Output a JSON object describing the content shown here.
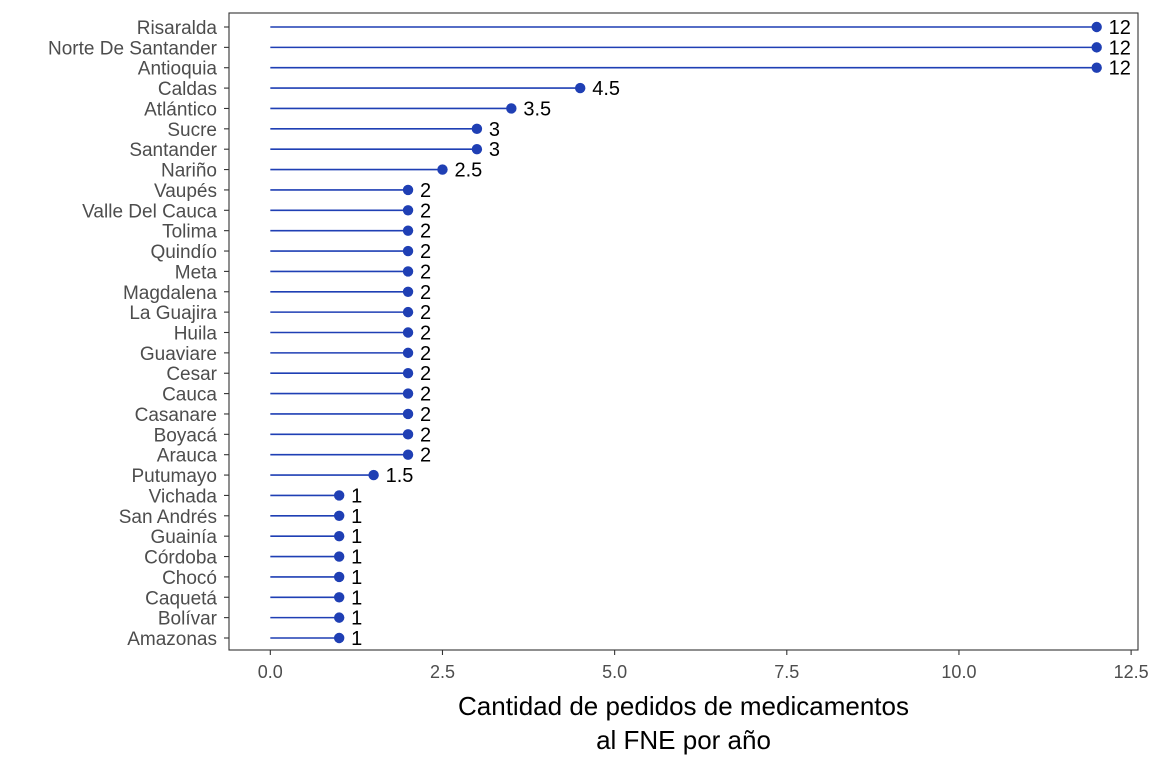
{
  "chart_data": {
    "type": "lollipop",
    "orientation": "horizontal",
    "title": "",
    "xlabel_lines": [
      "Cantidad de pedidos de medicamentos",
      "al FNE por año"
    ],
    "ylabel": "",
    "xlim": [
      -0.6,
      12.6
    ],
    "xticks": [
      0,
      2.5,
      5,
      7.5,
      10,
      12.5
    ],
    "xtick_labels": [
      "0.0",
      "2.5",
      "5.0",
      "7.5",
      "10.0",
      "12.5"
    ],
    "grid": false,
    "legend": "none",
    "color": "#1f3fb4",
    "categories": [
      "Risaralda",
      "Norte De Santander",
      "Antioquia",
      "Caldas",
      "Atlántico",
      "Sucre",
      "Santander",
      "Nariño",
      "Vaupés",
      "Valle Del Cauca",
      "Tolima",
      "Quindío",
      "Meta",
      "Magdalena",
      "La Guajira",
      "Huila",
      "Guaviare",
      "Cesar",
      "Cauca",
      "Casanare",
      "Boyacá",
      "Arauca",
      "Putumayo",
      "Vichada",
      "San Andrés",
      "Guainía",
      "Córdoba",
      "Chocó",
      "Caquetá",
      "Bolívar",
      "Amazonas"
    ],
    "values": [
      12,
      12,
      12,
      4.5,
      3.5,
      3,
      3,
      2.5,
      2,
      2,
      2,
      2,
      2,
      2,
      2,
      2,
      2,
      2,
      2,
      2,
      2,
      2,
      1.5,
      1,
      1,
      1,
      1,
      1,
      1,
      1,
      1
    ],
    "value_labels": [
      "12",
      "12",
      "12",
      "4.5",
      "3.5",
      "3",
      "3",
      "2.5",
      "2",
      "2",
      "2",
      "2",
      "2",
      "2",
      "2",
      "2",
      "2",
      "2",
      "2",
      "2",
      "2",
      "2",
      "1.5",
      "1",
      "1",
      "1",
      "1",
      "1",
      "1",
      "1",
      "1"
    ]
  }
}
